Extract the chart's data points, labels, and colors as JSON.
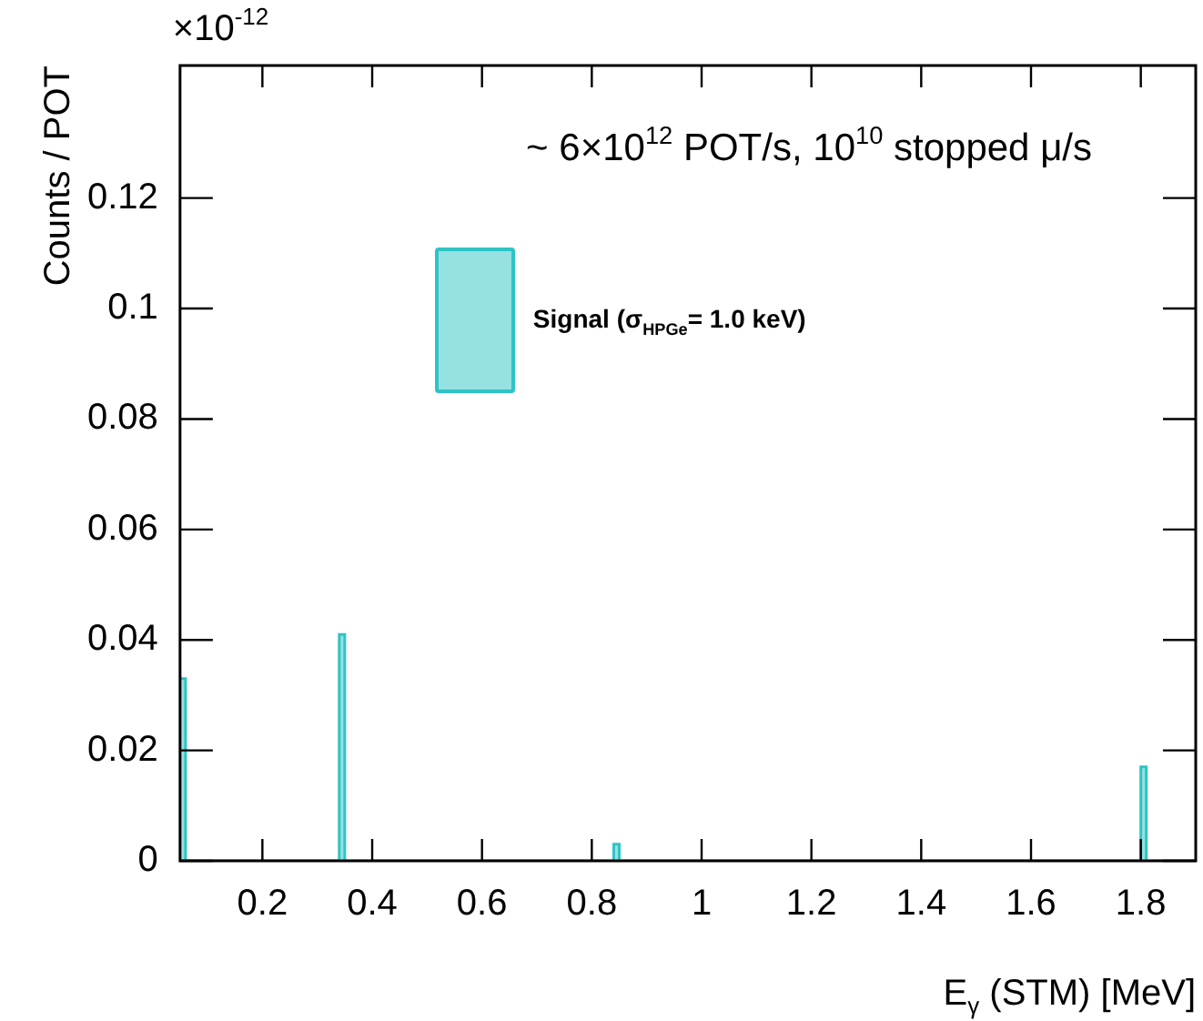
{
  "chart_data": {
    "type": "histogram",
    "ylabel": "Counts / POT",
    "xlabel": "E$_{γ}$ (STM) [MeV]",
    "annotations": [
      "×10$^{-12}$",
      "~ 6×10$^{12}$ POT/s, 10$^{10}$ stopped μ/s"
    ],
    "bins": [
      0.05,
      0.06,
      0.34,
      0.35,
      0.84,
      0.85,
      1.8,
      1.81,
      1.9
    ],
    "series": [
      {
        "name": "Signal (σ$_{HPGe}$= 1.0 keV)",
        "color": "#2ec4c4",
        "values": [
          0.033,
          0,
          0.041,
          0,
          0.003,
          0,
          0.017,
          0
        ]
      }
    ],
    "xlim": [
      0.05,
      1.9
    ],
    "xticks": [
      0.2,
      0.4,
      0.6,
      0.8,
      1,
      1.2,
      1.4,
      1.6,
      1.8
    ],
    "ylim": [
      0,
      0.144
    ],
    "yticks": [
      0,
      0.02,
      0.04,
      0.06,
      0.08,
      0.1,
      0.12
    ],
    "legend": "top left",
    "grid": false
  }
}
